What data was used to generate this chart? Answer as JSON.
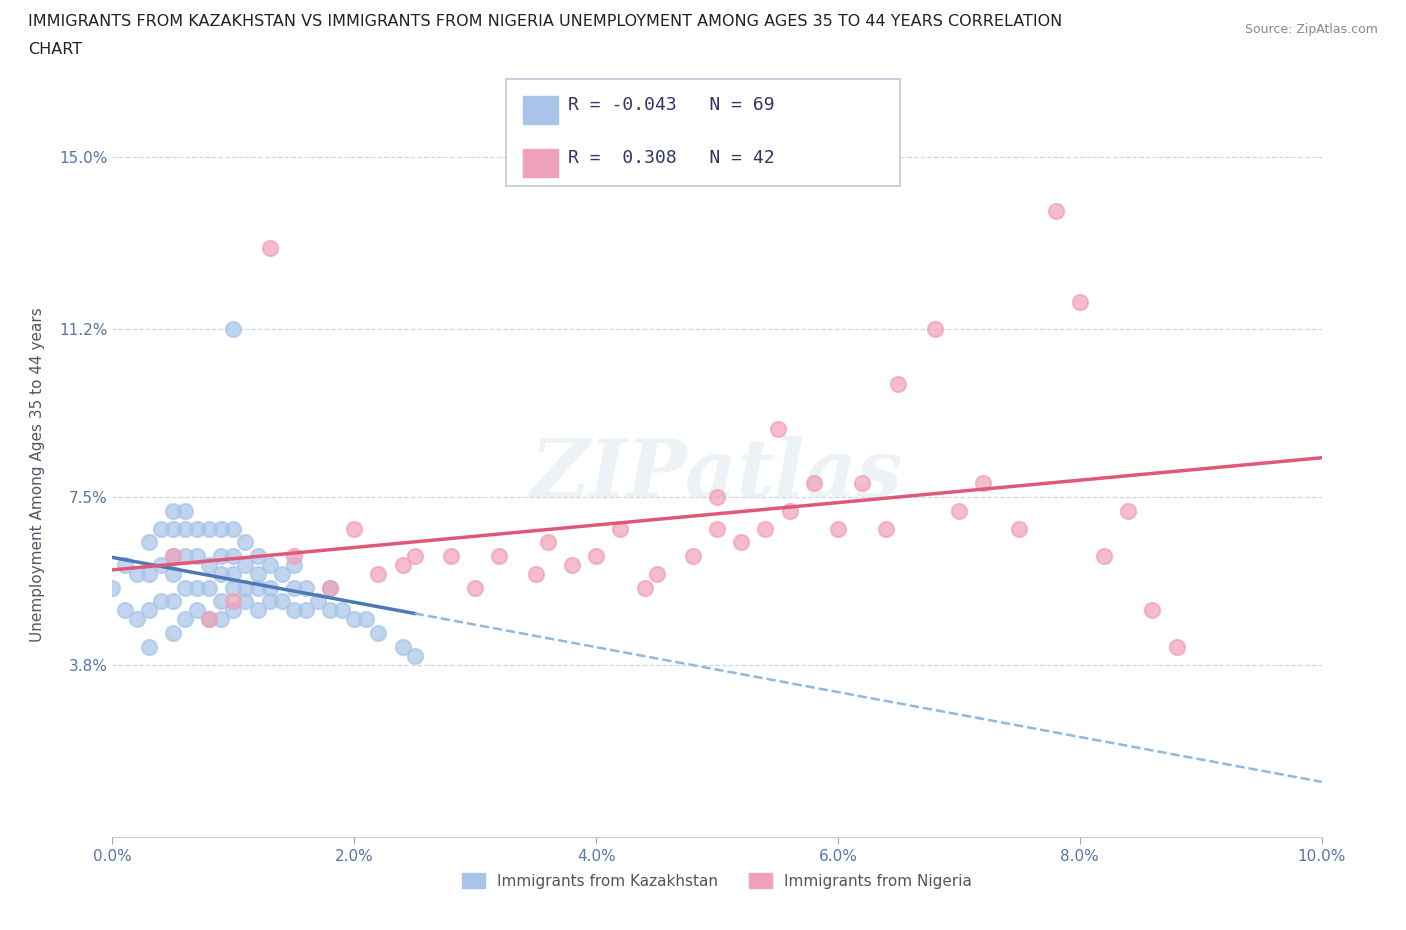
{
  "title_line1": "IMMIGRANTS FROM KAZAKHSTAN VS IMMIGRANTS FROM NIGERIA UNEMPLOYMENT AMONG AGES 35 TO 44 YEARS CORRELATION",
  "title_line2": "CHART",
  "source_text": "Source: ZipAtlas.com",
  "ylabel": "Unemployment Among Ages 35 to 44 years",
  "xlim": [
    0.0,
    0.1
  ],
  "ylim": [
    0.0,
    0.16
  ],
  "yticks": [
    0.038,
    0.075,
    0.112,
    0.15
  ],
  "ytick_labels": [
    "3.8%",
    "7.5%",
    "11.2%",
    "15.0%"
  ],
  "xticks": [
    0.0,
    0.02,
    0.04,
    0.06,
    0.08,
    0.1
  ],
  "xtick_labels": [
    "0.0%",
    "2.0%",
    "4.0%",
    "6.0%",
    "8.0%",
    "10.0%"
  ],
  "legend_R1": "-0.043",
  "legend_N1": "69",
  "legend_R2": "0.308",
  "legend_N2": "42",
  "color_kaz": "#a8c4e8",
  "color_nig": "#f0a0b8",
  "color_kaz_line": "#4a7ab5",
  "color_nig_line": "#e05878",
  "color_kaz_dash": "#90b8e0",
  "background_color": "#ffffff",
  "watermark": "ZIPatlas",
  "kaz_x": [
    0.0,
    0.001,
    0.001,
    0.002,
    0.002,
    0.003,
    0.003,
    0.003,
    0.003,
    0.004,
    0.004,
    0.004,
    0.005,
    0.005,
    0.005,
    0.005,
    0.005,
    0.005,
    0.006,
    0.006,
    0.006,
    0.006,
    0.006,
    0.007,
    0.007,
    0.007,
    0.007,
    0.008,
    0.008,
    0.008,
    0.008,
    0.009,
    0.009,
    0.009,
    0.009,
    0.009,
    0.01,
    0.01,
    0.01,
    0.01,
    0.01,
    0.011,
    0.011,
    0.011,
    0.011,
    0.012,
    0.012,
    0.012,
    0.012,
    0.013,
    0.013,
    0.013,
    0.014,
    0.014,
    0.015,
    0.015,
    0.015,
    0.016,
    0.016,
    0.017,
    0.018,
    0.018,
    0.019,
    0.02,
    0.021,
    0.022,
    0.024,
    0.025,
    0.01
  ],
  "kaz_y": [
    0.055,
    0.05,
    0.06,
    0.048,
    0.058,
    0.042,
    0.05,
    0.058,
    0.065,
    0.052,
    0.06,
    0.068,
    0.045,
    0.052,
    0.058,
    0.062,
    0.068,
    0.072,
    0.048,
    0.055,
    0.062,
    0.068,
    0.072,
    0.05,
    0.055,
    0.062,
    0.068,
    0.048,
    0.055,
    0.06,
    0.068,
    0.048,
    0.052,
    0.058,
    0.062,
    0.068,
    0.05,
    0.055,
    0.058,
    0.062,
    0.068,
    0.052,
    0.055,
    0.06,
    0.065,
    0.05,
    0.055,
    0.058,
    0.062,
    0.052,
    0.055,
    0.06,
    0.052,
    0.058,
    0.05,
    0.055,
    0.06,
    0.05,
    0.055,
    0.052,
    0.05,
    0.055,
    0.05,
    0.048,
    0.048,
    0.045,
    0.042,
    0.04,
    0.112
  ],
  "nig_x": [
    0.005,
    0.008,
    0.01,
    0.013,
    0.015,
    0.018,
    0.02,
    0.022,
    0.024,
    0.025,
    0.028,
    0.03,
    0.032,
    0.035,
    0.036,
    0.038,
    0.04,
    0.042,
    0.044,
    0.045,
    0.048,
    0.05,
    0.05,
    0.052,
    0.054,
    0.055,
    0.056,
    0.058,
    0.06,
    0.062,
    0.064,
    0.065,
    0.068,
    0.07,
    0.072,
    0.075,
    0.078,
    0.08,
    0.082,
    0.084,
    0.086,
    0.088
  ],
  "nig_y": [
    0.062,
    0.048,
    0.052,
    0.13,
    0.062,
    0.055,
    0.068,
    0.058,
    0.06,
    0.062,
    0.062,
    0.055,
    0.062,
    0.058,
    0.065,
    0.06,
    0.062,
    0.068,
    0.055,
    0.058,
    0.062,
    0.068,
    0.075,
    0.065,
    0.068,
    0.09,
    0.072,
    0.078,
    0.068,
    0.078,
    0.068,
    0.1,
    0.112,
    0.072,
    0.078,
    0.068,
    0.138,
    0.118,
    0.062,
    0.072,
    0.05,
    0.042
  ]
}
